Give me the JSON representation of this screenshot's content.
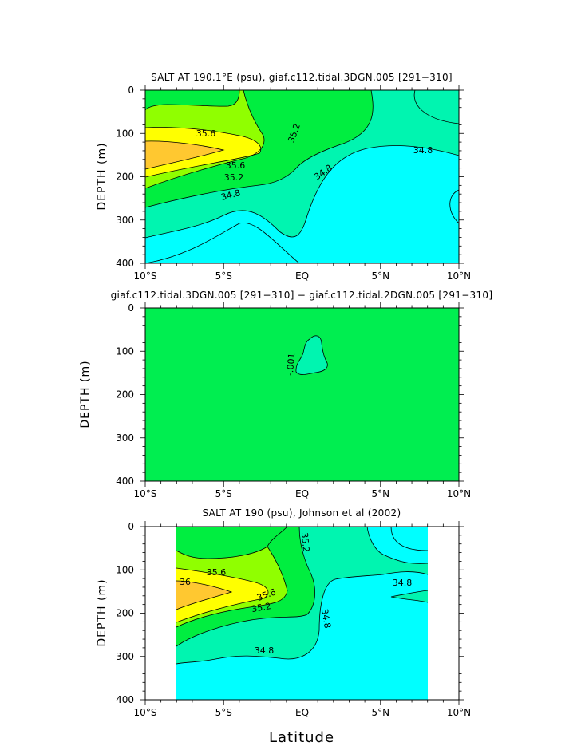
{
  "colors": {
    "lvl_348": "#00ffff",
    "lvl_348_352": "#00f5b0",
    "lvl_352_356": "#00ee40",
    "lvl_356_360a": "#90ff00",
    "lvl_360_364": "#ffff00",
    "lvl_364": "#ffc830",
    "diff_bg": "#00ee50",
    "diff_blob": "#00f5b0"
  },
  "xlabel": "Latitude",
  "chart_data": [
    {
      "type": "contour",
      "title": "SALT AT 190.1°E (psu), giaf.c112.tidal.3DGN.005 [291−310]",
      "ylabel": "DEPTH (m)",
      "xlabel": "",
      "xlim": [
        -10,
        10
      ],
      "ylim": [
        400,
        0
      ],
      "xticks": [
        "10°S",
        "5°S",
        "EQ",
        "5°N",
        "10°N"
      ],
      "yticks": [
        "0",
        "100",
        "200",
        "300",
        "400"
      ],
      "contour_labels": [
        "35.6",
        "35.6",
        "35.2",
        "35.2",
        "34.8",
        "34.8",
        "34.8"
      ]
    },
    {
      "type": "contour",
      "title": "giaf.c112.tidal.3DGN.005 [291−310] − giaf.c112.tidal.2DGN.005 [291−310]",
      "ylabel": "DEPTH (m)",
      "xlabel": "",
      "xlim": [
        -10,
        10
      ],
      "ylim": [
        400,
        0
      ],
      "xticks": [
        "10°S",
        "5°S",
        "EQ",
        "5°N",
        "10°N"
      ],
      "yticks": [
        "0",
        "100",
        "200",
        "300",
        "400"
      ],
      "contour_labels": [
        "-.001"
      ]
    },
    {
      "type": "contour",
      "title": "SALT AT 190 (psu), Johnson et al (2002)",
      "ylabel": "DEPTH (m)",
      "xlabel": "Latitude",
      "xlim": [
        -10,
        10
      ],
      "ylim": [
        400,
        0
      ],
      "data_xlim": [
        -8,
        8
      ],
      "xticks": [
        "10°S",
        "5°S",
        "EQ",
        "5°N",
        "10°N"
      ],
      "yticks": [
        "0",
        "100",
        "200",
        "300",
        "400"
      ],
      "contour_labels": [
        "35.2",
        "35.6",
        "36",
        "35.6",
        "35.2",
        "34.8",
        "34.8",
        "34.8"
      ]
    }
  ]
}
